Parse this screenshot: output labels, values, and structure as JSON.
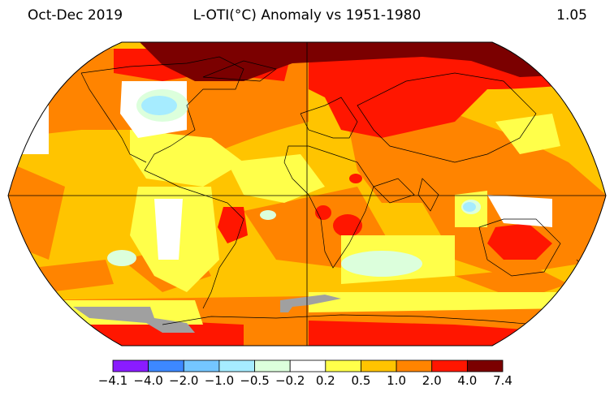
{
  "header": {
    "period": "Oct-Dec 2019",
    "title": "L-OTI(°C) Anomaly vs 1951-1980",
    "global_mean": "1.05"
  },
  "colorbar": {
    "ticks": [
      "−4.1",
      "−4.0",
      "−2.0",
      "−1.0",
      "−0.5",
      "−0.2",
      "0.2",
      "0.5",
      "1.0",
      "2.0",
      "4.0",
      "7.4"
    ],
    "colors": [
      "#8a1cff",
      "#3d88ff",
      "#74c6ff",
      "#a6ecff",
      "#dcffdc",
      "#ffffff",
      "#ffff4a",
      "#ffc400",
      "#ff8400",
      "#ff1600",
      "#7b0000"
    ],
    "missing_color": "#a0a0a0"
  },
  "map": {
    "projection": "robinson",
    "gridlines": [
      "equator",
      "prime-meridian"
    ]
  }
}
